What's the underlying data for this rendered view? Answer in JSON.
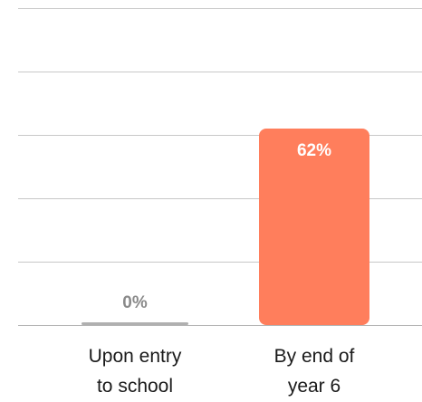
{
  "chart_data": {
    "type": "bar",
    "categories": [
      [
        "Upon entry",
        "to school"
      ],
      [
        "By end of",
        "year 6"
      ]
    ],
    "values": [
      0,
      62
    ],
    "value_labels": [
      "0%",
      "62%"
    ],
    "ylim": [
      0,
      100
    ],
    "gridlines": [
      20,
      40,
      60,
      80,
      100
    ],
    "grid": true,
    "colors": {
      "bar_primary": "#ff7e5c",
      "bar_zero": "#b0b0b0",
      "label_inside": "#ffffff",
      "label_outside": "#8a8a8a"
    }
  }
}
